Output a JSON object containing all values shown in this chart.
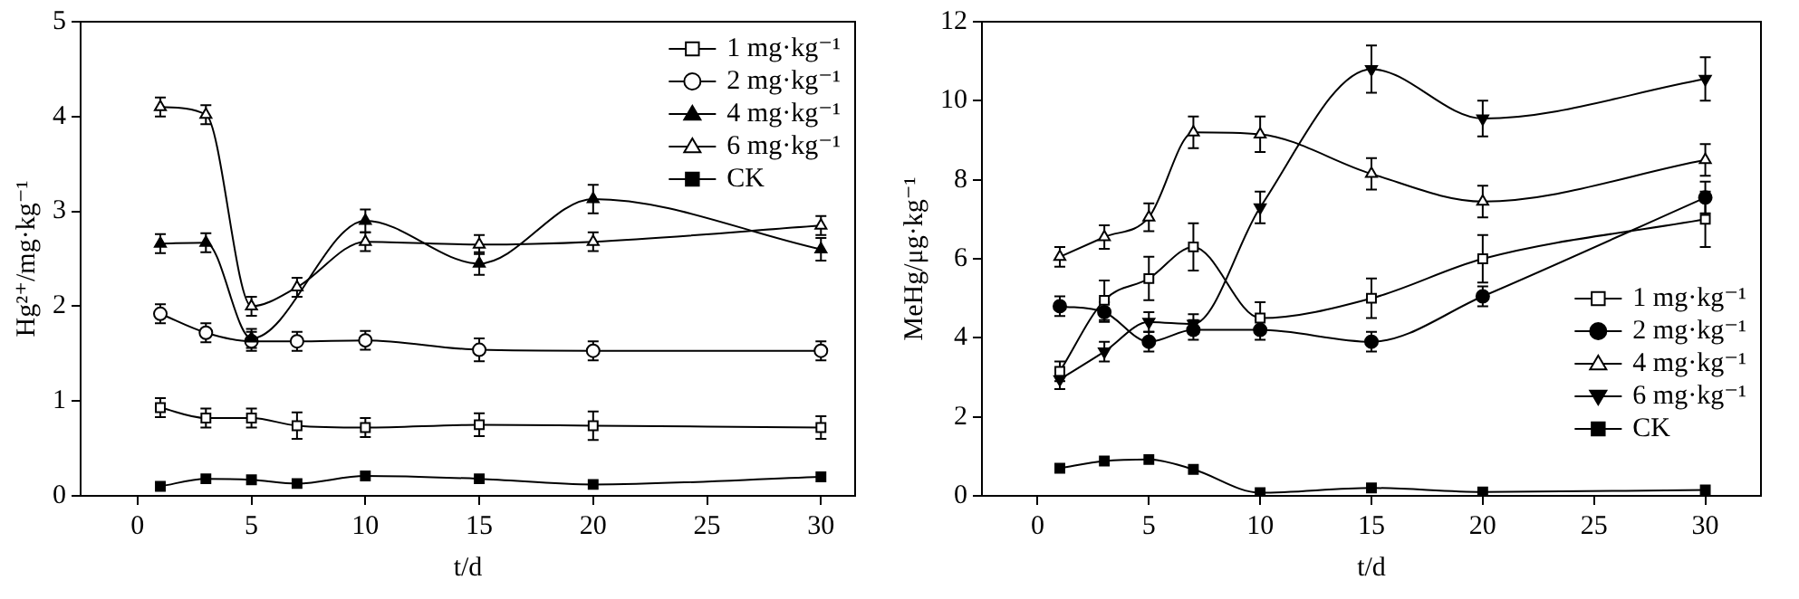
{
  "chart_data": [
    {
      "type": "line",
      "xlabel": "t/d",
      "ylabel": "Hg²⁺/mg·kg⁻¹",
      "x": [
        1,
        3,
        5,
        7,
        10,
        15,
        20,
        30
      ],
      "xlim": [
        -2.5,
        31.5
      ],
      "xticks": [
        0,
        5,
        10,
        15,
        20,
        25,
        30
      ],
      "ylim": [
        0,
        5
      ],
      "yticks": [
        0,
        1,
        2,
        3,
        4,
        5
      ],
      "grid": false,
      "legend": "top right",
      "series": [
        {
          "name": "1 mg·kg⁻¹",
          "color": "#000000",
          "marker": "square",
          "values": [
            0.93,
            0.82,
            0.82,
            0.74,
            0.72,
            0.75,
            0.74,
            0.72
          ],
          "errors": [
            0.1,
            0.1,
            0.1,
            0.14,
            0.1,
            0.12,
            0.15,
            0.12
          ]
        },
        {
          "name": "2 mg·kg⁻¹",
          "color": "#000000",
          "marker": "circle",
          "values": [
            1.92,
            1.72,
            1.63,
            1.63,
            1.64,
            1.54,
            1.53,
            1.53
          ],
          "errors": [
            0.1,
            0.1,
            0.1,
            0.1,
            0.1,
            0.12,
            0.1,
            0.1
          ]
        },
        {
          "name": "4 mg·kg⁻¹",
          "color": "#000000",
          "marker": "triangle",
          "values": [
            2.66,
            2.67,
            1.66,
            null,
            2.9,
            2.45,
            3.13,
            2.6
          ],
          "errors": [
            0.1,
            0.1,
            0.1,
            null,
            0.12,
            0.12,
            0.15,
            0.12
          ]
        },
        {
          "name": "6 mg·kg⁻¹",
          "color": "#000000",
          "marker": "triangle",
          "values": [
            4.1,
            4.02,
            2.0,
            2.2,
            2.68,
            2.65,
            2.68,
            2.85
          ],
          "errors": [
            0.1,
            0.1,
            0.1,
            0.1,
            0.1,
            0.1,
            0.1,
            0.1
          ]
        },
        {
          "name": "CK",
          "color": "#000000",
          "marker": "square",
          "values": [
            0.1,
            0.18,
            0.17,
            0.13,
            0.21,
            0.18,
            0.12,
            0.2
          ]
        }
      ]
    },
    {
      "type": "line",
      "xlabel": "t/d",
      "ylabel": "MeHg/μg·kg⁻¹",
      "x": [
        1,
        3,
        5,
        7,
        10,
        15,
        20,
        30
      ],
      "xlim": [
        -2.5,
        32.5
      ],
      "xticks": [
        0,
        5,
        10,
        15,
        20,
        25,
        30
      ],
      "ylim": [
        0,
        12
      ],
      "yticks": [
        0,
        2,
        4,
        6,
        8,
        10,
        12
      ],
      "grid": false,
      "legend": "bottom right",
      "series": [
        {
          "name": "1 mg·kg⁻¹",
          "color": "#000000",
          "marker": "square",
          "values": [
            3.15,
            4.95,
            5.5,
            6.3,
            4.5,
            5.0,
            6.0,
            7.0
          ],
          "errors": [
            0.25,
            0.5,
            0.55,
            0.6,
            0.4,
            0.5,
            0.6,
            0.7
          ]
        },
        {
          "name": "2 mg·kg⁻¹",
          "color": "#000000",
          "marker": "circle",
          "values": [
            4.8,
            4.65,
            3.9,
            4.2,
            4.2,
            3.9,
            5.05,
            7.55
          ],
          "errors": [
            0.25,
            0.25,
            0.25,
            0.25,
            0.25,
            0.25,
            0.25,
            0.4
          ]
        },
        {
          "name": "4 mg·kg⁻¹",
          "color": "#000000",
          "marker": "triangle",
          "values": [
            6.05,
            6.55,
            7.05,
            9.2,
            9.15,
            8.15,
            7.45,
            8.5
          ],
          "errors": [
            0.25,
            0.3,
            0.35,
            0.4,
            0.45,
            0.4,
            0.4,
            0.4
          ]
        },
        {
          "name": "6 mg·kg⁻¹",
          "color": "#000000",
          "marker": "triangle",
          "values": [
            2.95,
            3.65,
            4.4,
            4.35,
            7.3,
            10.8,
            9.55,
            10.55
          ],
          "errors": [
            0.25,
            0.25,
            0.25,
            0.25,
            0.4,
            0.6,
            0.45,
            0.55
          ]
        },
        {
          "name": "CK",
          "color": "#000000",
          "marker": "square",
          "values": [
            0.7,
            0.88,
            0.92,
            0.67,
            0.08,
            0.2,
            0.1,
            0.15
          ]
        }
      ]
    }
  ]
}
